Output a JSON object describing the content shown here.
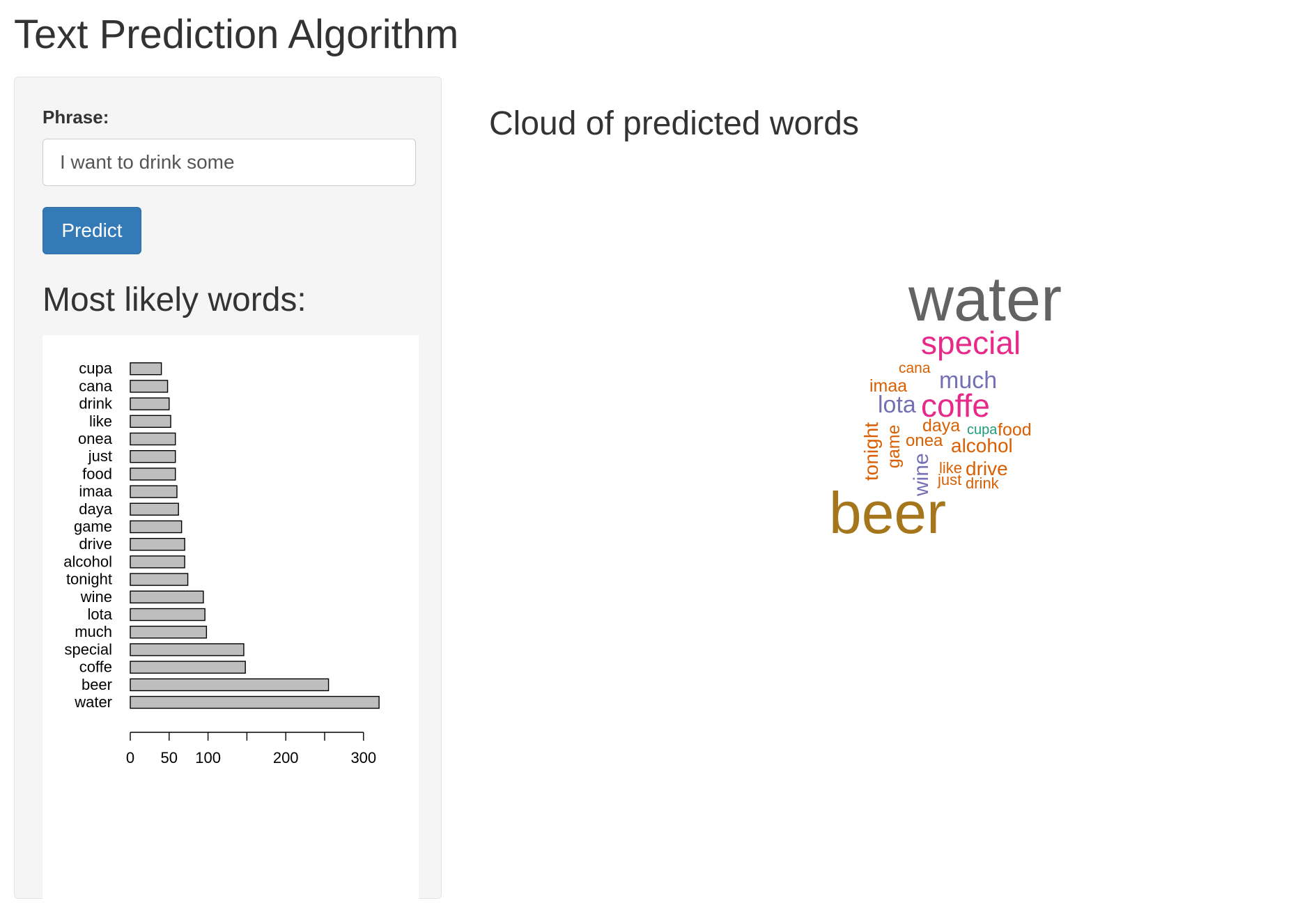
{
  "app": {
    "title": "Text Prediction Algorithm"
  },
  "sidebar": {
    "phrase_label": "Phrase:",
    "phrase_value": "I want to drink some",
    "predict_label": "Predict",
    "heading": "Most likely words:"
  },
  "main": {
    "cloud_heading": "Cloud of predicted words"
  },
  "chart_data": {
    "type": "bar",
    "orientation": "horizontal",
    "categories": [
      "water",
      "beer",
      "coffe",
      "special",
      "much",
      "lota",
      "wine",
      "tonight",
      "alcohol",
      "drive",
      "game",
      "daya",
      "imaa",
      "food",
      "just",
      "onea",
      "like",
      "drink",
      "cana",
      "cupa"
    ],
    "values": [
      320,
      255,
      148,
      146,
      98,
      96,
      94,
      74,
      70,
      70,
      66,
      62,
      60,
      58,
      58,
      58,
      52,
      50,
      48,
      40
    ],
    "xticks": [
      0,
      50,
      100,
      200,
      300
    ],
    "xlim": [
      0,
      330
    ],
    "bar_color": "#bebebe",
    "grid": false
  },
  "word_cloud": {
    "words": [
      {
        "text": "water",
        "color": "#636363",
        "size": 90
      },
      {
        "text": "beer",
        "color": "#a6761d",
        "size": 84
      },
      {
        "text": "special",
        "color": "#e7298a",
        "size": 46
      },
      {
        "text": "coffe",
        "color": "#e7298a",
        "size": 46
      },
      {
        "text": "much",
        "color": "#7570b3",
        "size": 34
      },
      {
        "text": "lota",
        "color": "#7570b3",
        "size": 34
      },
      {
        "text": "wine",
        "color": "#7570b3",
        "size": 30
      },
      {
        "text": "tonight",
        "color": "#d95f02",
        "size": 28
      },
      {
        "text": "alcohol",
        "color": "#d95f02",
        "size": 28
      },
      {
        "text": "drive",
        "color": "#d95f02",
        "size": 28
      },
      {
        "text": "game",
        "color": "#d95f02",
        "size": 25
      },
      {
        "text": "daya",
        "color": "#d95f02",
        "size": 25
      },
      {
        "text": "imaa",
        "color": "#d95f02",
        "size": 25
      },
      {
        "text": "food",
        "color": "#d95f02",
        "size": 25
      },
      {
        "text": "onea",
        "color": "#d95f02",
        "size": 24
      },
      {
        "text": "like",
        "color": "#d95f02",
        "size": 22
      },
      {
        "text": "just",
        "color": "#d95f02",
        "size": 22
      },
      {
        "text": "drink",
        "color": "#d95f02",
        "size": 22
      },
      {
        "text": "cana",
        "color": "#d95f02",
        "size": 21
      },
      {
        "text": "cupa",
        "color": "#1b9e77",
        "size": 20
      }
    ]
  }
}
